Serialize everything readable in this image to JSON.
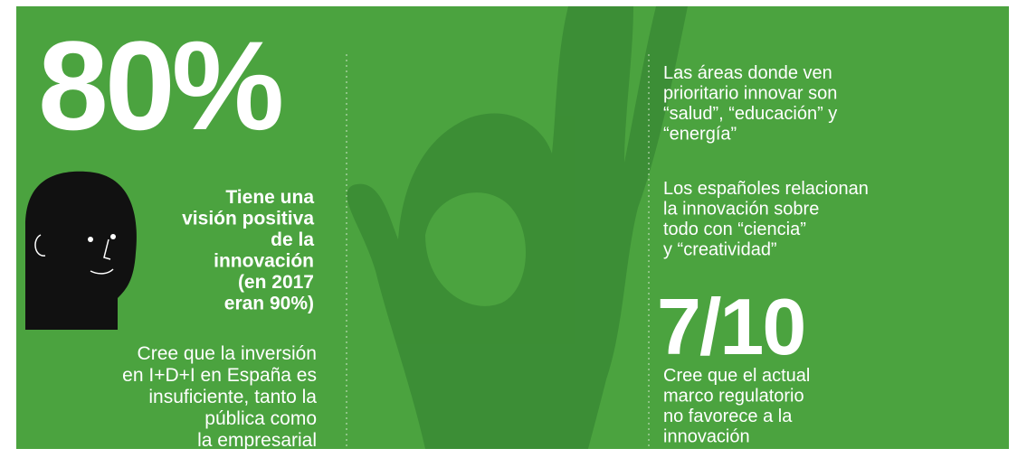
{
  "left": {
    "stat": "80%",
    "highlight": [
      "Tiene una",
      "visión positiva",
      "de la",
      "innovación",
      "(en 2017",
      "eran 90%)"
    ],
    "text": [
      "Cree que la inversión",
      "en I+D+I en España es",
      "insuficiente, tanto la",
      "pública como",
      "la empresarial"
    ]
  },
  "right": {
    "text1": [
      "Las áreas donde ven",
      "prioritario innovar son",
      "“salud”, “educación” y",
      "“energía”"
    ],
    "text2": [
      "Los españoles relacionan",
      "la innovación sobre",
      "todo con “ciencia”",
      "y “creatividad”"
    ],
    "stat": "7/10",
    "text3": [
      "Cree que el actual",
      "marco regulatorio",
      "no favorece a la",
      "innovación"
    ]
  }
}
